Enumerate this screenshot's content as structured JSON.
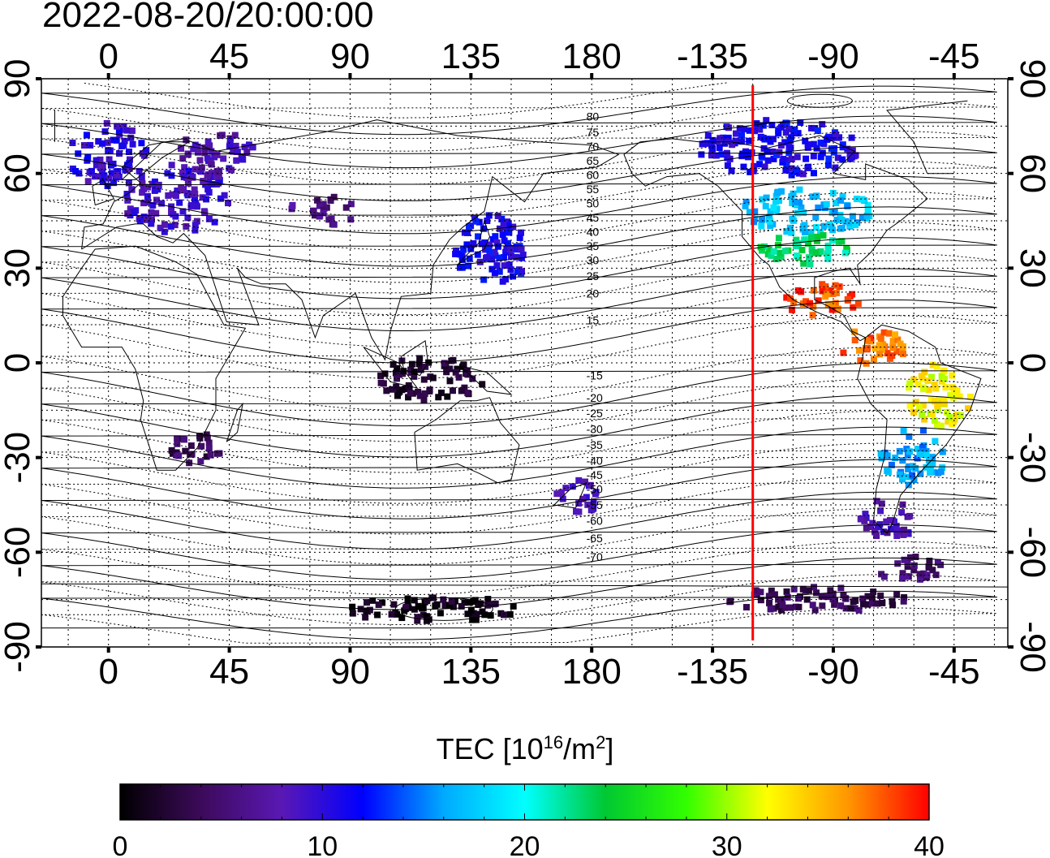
{
  "timestamp": "2022-08-20/20:00:00",
  "colorbar": {
    "title_prefix": "TEC  [10",
    "title_exp1": "16",
    "title_mid": "/m",
    "title_exp2": "2",
    "title_suffix": "]",
    "min": 0,
    "max": 40,
    "tick_labels": [
      "0",
      "10",
      "20",
      "30",
      "40"
    ],
    "colors": [
      "#000000",
      "#3c0a5a",
      "#5a18b4",
      "#0000ff",
      "#00aaff",
      "#00ffff",
      "#00c832",
      "#32ff00",
      "#ffff00",
      "#ff9600",
      "#ff0000"
    ]
  },
  "map": {
    "lon_ticks": [
      "0",
      "45",
      "90",
      "135",
      "180",
      "-135",
      "-90",
      "-45"
    ],
    "lat_ticks": [
      "90",
      "60",
      "30",
      "0",
      "-30",
      "-60",
      "-90"
    ],
    "contour_labels": [
      {
        "text": "80",
        "lat": 78
      },
      {
        "text": "75",
        "lat": 73
      },
      {
        "text": "70",
        "lat": 68.5
      },
      {
        "text": "65",
        "lat": 64
      },
      {
        "text": "60",
        "lat": 59.5
      },
      {
        "text": "55",
        "lat": 55
      },
      {
        "text": "50",
        "lat": 50.5
      },
      {
        "text": "45",
        "lat": 46
      },
      {
        "text": "40",
        "lat": 41.5
      },
      {
        "text": "35",
        "lat": 37
      },
      {
        "text": "30",
        "lat": 32.5
      },
      {
        "text": "25",
        "lat": 27.5
      },
      {
        "text": "20",
        "lat": 22
      },
      {
        "text": "15",
        "lat": 13.5
      },
      {
        "text": "-15",
        "lat": -4
      },
      {
        "text": "-20",
        "lat": -11
      },
      {
        "text": "-25",
        "lat": -16
      },
      {
        "text": "-30",
        "lat": -21
      },
      {
        "text": "-35",
        "lat": -26
      },
      {
        "text": "-40",
        "lat": -31
      },
      {
        "text": "-45",
        "lat": -35.5
      },
      {
        "text": "-50",
        "lat": -40
      },
      {
        "text": "-55",
        "lat": -45
      },
      {
        "text": "-60",
        "lat": -50
      },
      {
        "text": "-65",
        "lat": -55.5
      },
      {
        "text": "-70",
        "lat": -61.5
      }
    ],
    "terminator_longitude": -120,
    "tec_regions": [
      {
        "lon": 0,
        "lat": 66,
        "w": 30,
        "h": 20,
        "tec": 10
      },
      {
        "lon": 25,
        "lat": 52,
        "w": 40,
        "h": 22,
        "tec": 9
      },
      {
        "lon": 40,
        "lat": 66,
        "w": 30,
        "h": 14,
        "tec": 8
      },
      {
        "lon": 80,
        "lat": 48,
        "w": 25,
        "h": 10,
        "tec": 6
      },
      {
        "lon": 143,
        "lat": 36,
        "w": 30,
        "h": 22,
        "tec": 11
      },
      {
        "lon": 32,
        "lat": -27,
        "w": 22,
        "h": 10,
        "tec": 4
      },
      {
        "lon": 120,
        "lat": -5,
        "w": 40,
        "h": 14,
        "tec": 2
      },
      {
        "lon": 175,
        "lat": -42,
        "w": 16,
        "h": 12,
        "tec": 8
      },
      {
        "lon": 120,
        "lat": -78,
        "w": 70,
        "h": 8,
        "tec": 1
      },
      {
        "lon": -95,
        "lat": -75,
        "w": 70,
        "h": 8,
        "tec": 4
      },
      {
        "lon": -110,
        "lat": 68,
        "w": 60,
        "h": 18,
        "tec": 11
      },
      {
        "lon": -100,
        "lat": 48,
        "w": 50,
        "h": 14,
        "tec": 17
      },
      {
        "lon": -100,
        "lat": 36,
        "w": 35,
        "h": 10,
        "tec": 23
      },
      {
        "lon": -95,
        "lat": 20,
        "w": 30,
        "h": 10,
        "tec": 38
      },
      {
        "lon": -75,
        "lat": 5,
        "w": 25,
        "h": 12,
        "tec": 37
      },
      {
        "lon": -50,
        "lat": -10,
        "w": 25,
        "h": 20,
        "tec": 32
      },
      {
        "lon": -60,
        "lat": -30,
        "w": 25,
        "h": 18,
        "tec": 16
      },
      {
        "lon": -70,
        "lat": -50,
        "w": 20,
        "h": 14,
        "tec": 8
      },
      {
        "lon": -62,
        "lat": -65,
        "w": 25,
        "h": 8,
        "tec": 5
      }
    ]
  }
}
